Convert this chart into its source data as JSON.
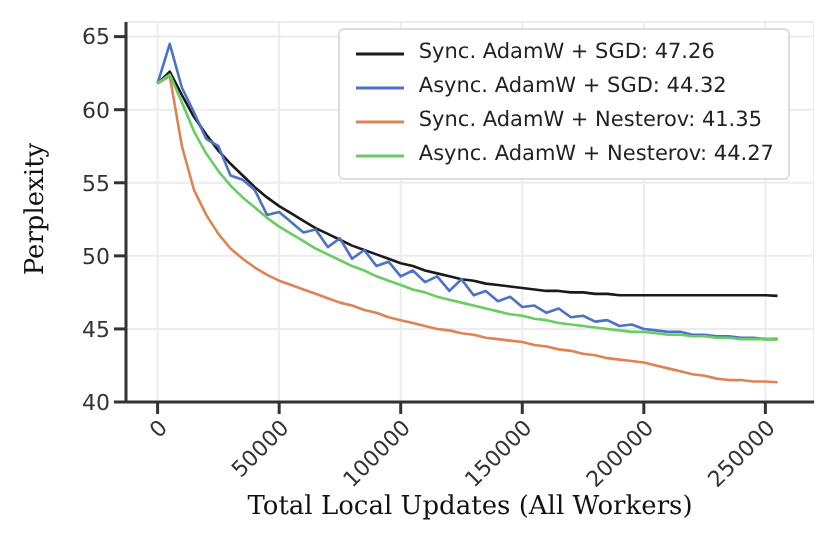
{
  "chart_data": {
    "type": "line",
    "xlabel": "Total Local Updates (All Workers)",
    "ylabel": "Perplexity",
    "x": [
      0,
      5000,
      10000,
      15000,
      20000,
      25000,
      30000,
      35000,
      40000,
      45000,
      50000,
      55000,
      60000,
      65000,
      70000,
      75000,
      80000,
      85000,
      90000,
      95000,
      100000,
      105000,
      110000,
      115000,
      120000,
      125000,
      130000,
      135000,
      140000,
      145000,
      150000,
      155000,
      160000,
      165000,
      170000,
      175000,
      180000,
      185000,
      190000,
      195000,
      200000,
      205000,
      210000,
      215000,
      220000,
      225000,
      230000,
      235000,
      240000,
      245000,
      250000,
      255000
    ],
    "series": [
      {
        "name": "Sync. AdamW + SGD: 47.26",
        "color": "#1a1a1a",
        "values": [
          61.8,
          62.6,
          61.0,
          59.5,
          58.3,
          57.2,
          56.3,
          55.5,
          54.7,
          54.0,
          53.4,
          52.9,
          52.4,
          51.9,
          51.5,
          51.1,
          50.7,
          50.4,
          50.1,
          49.8,
          49.5,
          49.3,
          49.0,
          48.8,
          48.6,
          48.4,
          48.3,
          48.1,
          48.0,
          47.9,
          47.8,
          47.7,
          47.6,
          47.6,
          47.5,
          47.5,
          47.4,
          47.4,
          47.3,
          47.3,
          47.3,
          47.3,
          47.3,
          47.3,
          47.3,
          47.3,
          47.3,
          47.3,
          47.3,
          47.3,
          47.3,
          47.26
        ]
      },
      {
        "name": "Async. AdamW + SGD: 44.32",
        "color": "#4c72c4",
        "values": [
          61.8,
          64.5,
          61.5,
          59.8,
          58.0,
          57.5,
          55.5,
          55.2,
          54.5,
          52.8,
          53.0,
          52.3,
          51.6,
          51.8,
          50.6,
          51.2,
          49.8,
          50.4,
          49.3,
          49.6,
          48.6,
          49.0,
          48.2,
          48.6,
          47.6,
          48.4,
          47.3,
          47.6,
          46.9,
          47.2,
          46.5,
          46.6,
          46.1,
          46.4,
          45.8,
          45.9,
          45.5,
          45.6,
          45.2,
          45.3,
          45.0,
          44.9,
          44.8,
          44.8,
          44.6,
          44.6,
          44.5,
          44.5,
          44.4,
          44.4,
          44.3,
          44.32
        ]
      },
      {
        "name": "Sync. AdamW + Nesterov: 41.35",
        "color": "#dd8452",
        "values": [
          61.8,
          62.3,
          57.5,
          54.5,
          52.8,
          51.5,
          50.5,
          49.8,
          49.2,
          48.7,
          48.3,
          48.0,
          47.7,
          47.4,
          47.1,
          46.8,
          46.6,
          46.3,
          46.1,
          45.8,
          45.6,
          45.4,
          45.2,
          45.0,
          44.9,
          44.7,
          44.6,
          44.4,
          44.3,
          44.2,
          44.1,
          43.9,
          43.8,
          43.6,
          43.5,
          43.3,
          43.2,
          43.0,
          42.9,
          42.8,
          42.7,
          42.5,
          42.3,
          42.1,
          41.9,
          41.8,
          41.6,
          41.5,
          41.5,
          41.4,
          41.4,
          41.35
        ]
      },
      {
        "name": "Async. AdamW + Nesterov: 44.27",
        "color": "#6acc64",
        "values": [
          61.8,
          62.4,
          60.5,
          58.5,
          57.0,
          55.8,
          54.8,
          54.0,
          53.3,
          52.6,
          52.0,
          51.5,
          51.0,
          50.5,
          50.1,
          49.7,
          49.3,
          49.0,
          48.6,
          48.3,
          48.0,
          47.7,
          47.5,
          47.2,
          47.0,
          46.8,
          46.6,
          46.4,
          46.2,
          46.0,
          45.9,
          45.7,
          45.6,
          45.4,
          45.3,
          45.2,
          45.1,
          45.0,
          44.9,
          44.8,
          44.8,
          44.7,
          44.6,
          44.6,
          44.5,
          44.5,
          44.4,
          44.4,
          44.3,
          44.3,
          44.3,
          44.27
        ]
      }
    ],
    "xlim": [
      -13000,
      270000
    ],
    "xticks": [
      0,
      50000,
      100000,
      150000,
      200000,
      250000
    ],
    "ylim": [
      40,
      66
    ],
    "yticks": [
      40,
      45,
      50,
      55,
      60,
      65
    ],
    "grid": true,
    "legend": "top right"
  }
}
